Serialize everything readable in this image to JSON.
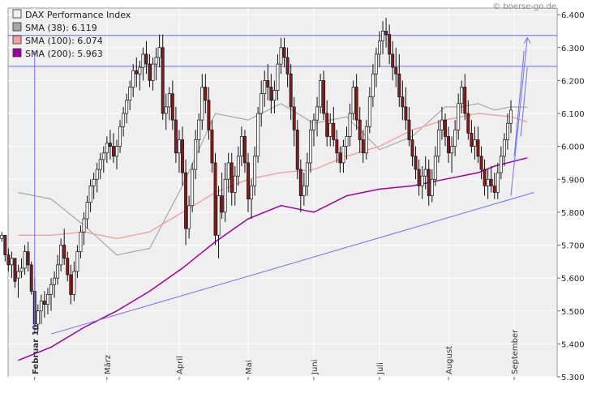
{
  "chart_data": {
    "type": "candlestick",
    "title": "DAX Performance Index",
    "watermark": "© boerse-go.de",
    "ylim": [
      5.3,
      6.42
    ],
    "y_ticks": [
      "5.300",
      "5.400",
      "5.500",
      "5.600",
      "5.700",
      "5.800",
      "5.900",
      "6.000",
      "6.100",
      "6.200",
      "6.300",
      "6.400"
    ],
    "x_month_labels": [
      "Februar 10",
      "März",
      "April",
      "Mai",
      "Juni",
      "Juli",
      "August",
      "September"
    ],
    "legend": [
      {
        "label": "DAX Performance Index",
        "color": "#f0f0f0"
      },
      {
        "label": "SMA (38): 6.119",
        "color": "#a8a8a8"
      },
      {
        "label": "SMA (100): 6.074",
        "color": "#f3a0a0"
      },
      {
        "label": "SMA (200): 5.963",
        "color": "#a000a0"
      }
    ],
    "colors": {
      "plot_bg": "#efefef",
      "grid": "#ffffff",
      "up_candle": "#ffffff",
      "down_candle": "#8b1a1a",
      "trendline": "#6e6eff",
      "sma38": "#a8a8a8",
      "sma100": "#f3a0a0",
      "sma200": "#a000a0"
    },
    "horizontal_lines": [
      6.337,
      6.243
    ],
    "trendlines": [
      {
        "from": [
          0,
          5.43
        ],
        "to": [
          147,
          5.86
        ]
      },
      {
        "from": [
          -5,
          5.43
        ],
        "to": [
          -5,
          6.29
        ]
      },
      {
        "from": [
          140,
          5.85
        ],
        "to": [
          145,
          6.33
        ]
      },
      {
        "from": [
          141,
          5.97
        ],
        "to": [
          144,
          6.29
        ]
      },
      {
        "from": [
          143,
          6.03
        ],
        "to": [
          145,
          6.24
        ]
      }
    ],
    "sma200": [
      [
        -10,
        5.35
      ],
      [
        0,
        5.39
      ],
      [
        10,
        5.45
      ],
      [
        20,
        5.5
      ],
      [
        30,
        5.56
      ],
      [
        40,
        5.63
      ],
      [
        50,
        5.71
      ],
      [
        60,
        5.78
      ],
      [
        70,
        5.82
      ],
      [
        80,
        5.8
      ],
      [
        90,
        5.85
      ],
      [
        100,
        5.87
      ],
      [
        110,
        5.88
      ],
      [
        120,
        5.9
      ],
      [
        130,
        5.92
      ],
      [
        135,
        5.94
      ],
      [
        145,
        5.965
      ]
    ],
    "sma100": [
      [
        -10,
        5.73
      ],
      [
        0,
        5.73
      ],
      [
        10,
        5.74
      ],
      [
        20,
        5.72
      ],
      [
        30,
        5.74
      ],
      [
        40,
        5.8
      ],
      [
        50,
        5.86
      ],
      [
        60,
        5.9
      ],
      [
        70,
        5.92
      ],
      [
        80,
        5.93
      ],
      [
        90,
        5.97
      ],
      [
        100,
        6.0
      ],
      [
        110,
        6.05
      ],
      [
        120,
        6.08
      ],
      [
        130,
        6.1
      ],
      [
        140,
        6.09
      ],
      [
        145,
        6.074
      ]
    ],
    "sma38": [
      [
        -10,
        5.86
      ],
      [
        0,
        5.84
      ],
      [
        10,
        5.76
      ],
      [
        20,
        5.67
      ],
      [
        30,
        5.69
      ],
      [
        40,
        5.88
      ],
      [
        50,
        6.1
      ],
      [
        60,
        6.08
      ],
      [
        70,
        6.13
      ],
      [
        80,
        6.07
      ],
      [
        90,
        6.09
      ],
      [
        100,
        5.99
      ],
      [
        110,
        6.03
      ],
      [
        120,
        6.12
      ],
      [
        125,
        6.12
      ],
      [
        130,
        6.13
      ],
      [
        135,
        6.11
      ],
      [
        140,
        6.12
      ],
      [
        145,
        6.119
      ]
    ],
    "candles": [
      [
        -15,
        5.72,
        5.74,
        5.71,
        5.73
      ],
      [
        -14,
        5.73,
        5.72,
        5.65,
        5.67
      ],
      [
        -13,
        5.67,
        5.69,
        5.62,
        5.64
      ],
      [
        -12,
        5.64,
        5.68,
        5.6,
        5.66
      ],
      [
        -11,
        5.66,
        5.65,
        5.57,
        5.59
      ],
      [
        -10,
        5.6,
        5.64,
        5.54,
        5.62
      ],
      [
        -9,
        5.62,
        5.66,
        5.6,
        5.63
      ],
      [
        -8,
        5.63,
        5.7,
        5.61,
        5.68
      ],
      [
        -7,
        5.68,
        5.71,
        5.62,
        5.64
      ],
      [
        -6,
        5.64,
        5.65,
        5.55,
        5.56
      ],
      [
        -5,
        5.56,
        5.6,
        5.43,
        5.46
      ],
      [
        -4,
        5.46,
        5.52,
        5.44,
        5.5
      ],
      [
        -3,
        5.5,
        5.55,
        5.46,
        5.53
      ],
      [
        -2,
        5.53,
        5.56,
        5.48,
        5.52
      ],
      [
        -1,
        5.52,
        5.57,
        5.49,
        5.55
      ],
      [
        0,
        5.55,
        5.6,
        5.5,
        5.58
      ],
      [
        1,
        5.58,
        5.62,
        5.54,
        5.6
      ],
      [
        2,
        5.6,
        5.67,
        5.58,
        5.64
      ],
      [
        3,
        5.64,
        5.72,
        5.62,
        5.7
      ],
      [
        4,
        5.7,
        5.75,
        5.64,
        5.66
      ],
      [
        5,
        5.66,
        5.68,
        5.59,
        5.61
      ],
      [
        6,
        5.61,
        5.64,
        5.52,
        5.55
      ],
      [
        7,
        5.55,
        5.65,
        5.53,
        5.62
      ],
      [
        8,
        5.62,
        5.7,
        5.6,
        5.68
      ],
      [
        9,
        5.68,
        5.76,
        5.66,
        5.74
      ],
      [
        10,
        5.74,
        5.8,
        5.7,
        5.78
      ],
      [
        11,
        5.78,
        5.85,
        5.75,
        5.83
      ],
      [
        12,
        5.83,
        5.9,
        5.8,
        5.88
      ],
      [
        13,
        5.88,
        5.92,
        5.84,
        5.9
      ],
      [
        14,
        5.9,
        5.95,
        5.86,
        5.93
      ],
      [
        15,
        5.93,
        5.98,
        5.9,
        5.96
      ],
      [
        16,
        5.96,
        6.0,
        5.92,
        5.98
      ],
      [
        17,
        5.98,
        6.03,
        5.95,
        6.01
      ],
      [
        18,
        6.01,
        6.05,
        5.96,
        6.0
      ],
      [
        19,
        6.0,
        6.04,
        5.95,
        5.97
      ],
      [
        20,
        5.97,
        6.02,
        5.93,
        6.0
      ],
      [
        21,
        6.0,
        6.08,
        5.98,
        6.06
      ],
      [
        22,
        6.06,
        6.12,
        6.03,
        6.1
      ],
      [
        23,
        6.1,
        6.16,
        6.07,
        6.14
      ],
      [
        24,
        6.14,
        6.2,
        6.11,
        6.18
      ],
      [
        25,
        6.18,
        6.25,
        6.15,
        6.23
      ],
      [
        26,
        6.23,
        6.27,
        6.18,
        6.22
      ],
      [
        27,
        6.22,
        6.26,
        6.17,
        6.24
      ],
      [
        28,
        6.24,
        6.3,
        6.2,
        6.28
      ],
      [
        29,
        6.28,
        6.32,
        6.22,
        6.25
      ],
      [
        30,
        6.25,
        6.28,
        6.18,
        6.2
      ],
      [
        31,
        6.2,
        6.27,
        6.17,
        6.25
      ],
      [
        32,
        6.25,
        6.3,
        6.2,
        6.27
      ],
      [
        33,
        6.27,
        6.34,
        6.24,
        6.3
      ],
      [
        34,
        6.3,
        6.34,
        6.08,
        6.1
      ],
      [
        35,
        6.1,
        6.16,
        6.05,
        6.12
      ],
      [
        36,
        6.12,
        6.18,
        6.08,
        6.16
      ],
      [
        37,
        6.16,
        6.2,
        6.05,
        6.08
      ],
      [
        38,
        6.08,
        6.12,
        5.95,
        5.98
      ],
      [
        39,
        5.98,
        6.05,
        5.92,
        6.02
      ],
      [
        40,
        6.02,
        6.06,
        5.88,
        5.92
      ],
      [
        41,
        5.92,
        5.96,
        5.7,
        5.75
      ],
      [
        42,
        5.75,
        5.85,
        5.72,
        5.82
      ],
      [
        43,
        5.82,
        5.95,
        5.8,
        5.93
      ],
      [
        44,
        5.93,
        6.05,
        5.9,
        6.02
      ],
      [
        45,
        6.02,
        6.1,
        5.98,
        6.08
      ],
      [
        46,
        6.08,
        6.22,
        6.05,
        6.18
      ],
      [
        47,
        6.18,
        6.22,
        6.1,
        6.14
      ],
      [
        48,
        6.14,
        6.18,
        6.02,
        6.05
      ],
      [
        49,
        6.05,
        6.08,
        5.92,
        5.95
      ],
      [
        50,
        5.95,
        5.98,
        5.7,
        5.73
      ],
      [
        51,
        5.73,
        5.88,
        5.66,
        5.85
      ],
      [
        52,
        5.85,
        5.92,
        5.78,
        5.8
      ],
      [
        53,
        5.8,
        5.95,
        5.77,
        5.9
      ],
      [
        54,
        5.9,
        5.98,
        5.86,
        5.95
      ],
      [
        55,
        5.95,
        5.98,
        5.82,
        5.86
      ],
      [
        56,
        5.86,
        5.94,
        5.82,
        5.91
      ],
      [
        57,
        5.91,
        6.0,
        5.88,
        5.97
      ],
      [
        58,
        5.97,
        6.06,
        5.94,
        6.03
      ],
      [
        59,
        6.03,
        6.05,
        5.92,
        5.95
      ],
      [
        60,
        5.95,
        5.98,
        5.8,
        5.84
      ],
      [
        61,
        5.84,
        5.9,
        5.78,
        5.88
      ],
      [
        62,
        5.88,
        6.0,
        5.85,
        5.97
      ],
      [
        63,
        5.97,
        6.12,
        5.95,
        6.1
      ],
      [
        64,
        6.1,
        6.2,
        6.06,
        6.16
      ],
      [
        65,
        6.16,
        6.23,
        6.12,
        6.2
      ],
      [
        66,
        6.2,
        6.25,
        6.14,
        6.18
      ],
      [
        67,
        6.18,
        6.22,
        6.1,
        6.14
      ],
      [
        68,
        6.14,
        6.2,
        6.1,
        6.17
      ],
      [
        69,
        6.17,
        6.28,
        6.14,
        6.25
      ],
      [
        70,
        6.25,
        6.33,
        6.22,
        6.3
      ],
      [
        71,
        6.3,
        6.33,
        6.24,
        6.27
      ],
      [
        72,
        6.27,
        6.3,
        6.18,
        6.22
      ],
      [
        73,
        6.22,
        6.25,
        6.08,
        6.12
      ],
      [
        74,
        6.12,
        6.15,
        6.0,
        6.05
      ],
      [
        75,
        6.05,
        6.08,
        5.9,
        5.93
      ],
      [
        76,
        5.93,
        5.96,
        5.8,
        5.85
      ],
      [
        77,
        5.85,
        5.92,
        5.82,
        5.88
      ],
      [
        78,
        5.88,
        5.98,
        5.85,
        5.95
      ],
      [
        79,
        5.95,
        6.08,
        5.92,
        6.05
      ],
      [
        80,
        6.05,
        6.1,
        6.0,
        6.08
      ],
      [
        81,
        6.08,
        6.15,
        6.03,
        6.12
      ],
      [
        82,
        6.12,
        6.22,
        6.1,
        6.2
      ],
      [
        83,
        6.2,
        6.23,
        6.08,
        6.1
      ],
      [
        84,
        6.1,
        6.14,
        6.0,
        6.03
      ],
      [
        85,
        6.03,
        6.1,
        6.0,
        6.07
      ],
      [
        86,
        6.07,
        6.12,
        6.0,
        6.02
      ],
      [
        87,
        6.02,
        6.05,
        5.95,
        5.98
      ],
      [
        88,
        5.98,
        6.0,
        5.92,
        5.95
      ],
      [
        89,
        5.95,
        6.02,
        5.92,
        6.0
      ],
      [
        90,
        6.0,
        6.06,
        5.96,
        6.03
      ],
      [
        91,
        6.03,
        6.13,
        6.0,
        6.1
      ],
      [
        92,
        6.1,
        6.2,
        6.08,
        6.18
      ],
      [
        93,
        6.18,
        6.22,
        6.05,
        6.08
      ],
      [
        94,
        6.08,
        6.12,
        5.98,
        6.02
      ],
      [
        95,
        6.02,
        6.05,
        5.95,
        5.98
      ],
      [
        96,
        5.98,
        6.08,
        5.96,
        6.06
      ],
      [
        97,
        6.06,
        6.18,
        6.04,
        6.15
      ],
      [
        98,
        6.15,
        6.25,
        6.12,
        6.22
      ],
      [
        99,
        6.22,
        6.3,
        6.18,
        6.28
      ],
      [
        100,
        6.28,
        6.35,
        6.24,
        6.32
      ],
      [
        101,
        6.32,
        6.38,
        6.28,
        6.35
      ],
      [
        102,
        6.35,
        6.39,
        6.3,
        6.34
      ],
      [
        103,
        6.34,
        6.37,
        6.25,
        6.28
      ],
      [
        104,
        6.28,
        6.32,
        6.2,
        6.24
      ],
      [
        105,
        6.24,
        6.3,
        6.18,
        6.22
      ],
      [
        106,
        6.22,
        6.28,
        6.12,
        6.15
      ],
      [
        107,
        6.15,
        6.2,
        6.08,
        6.12
      ],
      [
        108,
        6.12,
        6.18,
        6.05,
        6.08
      ],
      [
        109,
        6.08,
        6.12,
        6.0,
        6.02
      ],
      [
        110,
        6.02,
        6.05,
        5.94,
        5.97
      ],
      [
        111,
        5.97,
        6.0,
        5.9,
        5.93
      ],
      [
        112,
        5.93,
        5.96,
        5.85,
        5.88
      ],
      [
        113,
        5.88,
        5.94,
        5.84,
        5.91
      ],
      [
        114,
        5.91,
        5.97,
        5.87,
        5.93
      ],
      [
        115,
        5.93,
        5.96,
        5.82,
        5.85
      ],
      [
        116,
        5.85,
        5.93,
        5.83,
        5.9
      ],
      [
        117,
        5.9,
        6.0,
        5.88,
        5.97
      ],
      [
        118,
        5.97,
        6.08,
        5.95,
        6.05
      ],
      [
        119,
        6.05,
        6.12,
        6.02,
        6.08
      ],
      [
        120,
        6.08,
        6.1,
        6.0,
        6.03
      ],
      [
        121,
        6.03,
        6.06,
        5.95,
        5.98
      ],
      [
        122,
        5.98,
        6.03,
        5.92,
        6.0
      ],
      [
        123,
        6.0,
        6.08,
        5.97,
        6.05
      ],
      [
        124,
        6.05,
        6.16,
        6.02,
        6.13
      ],
      [
        125,
        6.13,
        6.2,
        6.1,
        6.18
      ],
      [
        126,
        6.18,
        6.22,
        6.08,
        6.1
      ],
      [
        127,
        6.1,
        6.14,
        6.02,
        6.04
      ],
      [
        128,
        6.04,
        6.08,
        5.98,
        6.0
      ],
      [
        129,
        6.0,
        6.06,
        5.96,
        6.02
      ],
      [
        130,
        6.02,
        6.06,
        5.95,
        5.97
      ],
      [
        131,
        5.97,
        6.0,
        5.9,
        5.93
      ],
      [
        132,
        5.93,
        5.96,
        5.85,
        5.88
      ],
      [
        133,
        5.88,
        5.93,
        5.84,
        5.9
      ],
      [
        134,
        5.9,
        5.94,
        5.86,
        5.88
      ],
      [
        135,
        5.88,
        5.92,
        5.84,
        5.86
      ],
      [
        136,
        5.86,
        5.95,
        5.84,
        5.92
      ],
      [
        137,
        5.92,
        6.0,
        5.9,
        5.97
      ],
      [
        138,
        5.97,
        6.04,
        5.94,
        6.02
      ],
      [
        139,
        6.02,
        6.1,
        5.99,
        6.07
      ],
      [
        140,
        6.07,
        6.14,
        6.04,
        6.11
      ]
    ]
  }
}
